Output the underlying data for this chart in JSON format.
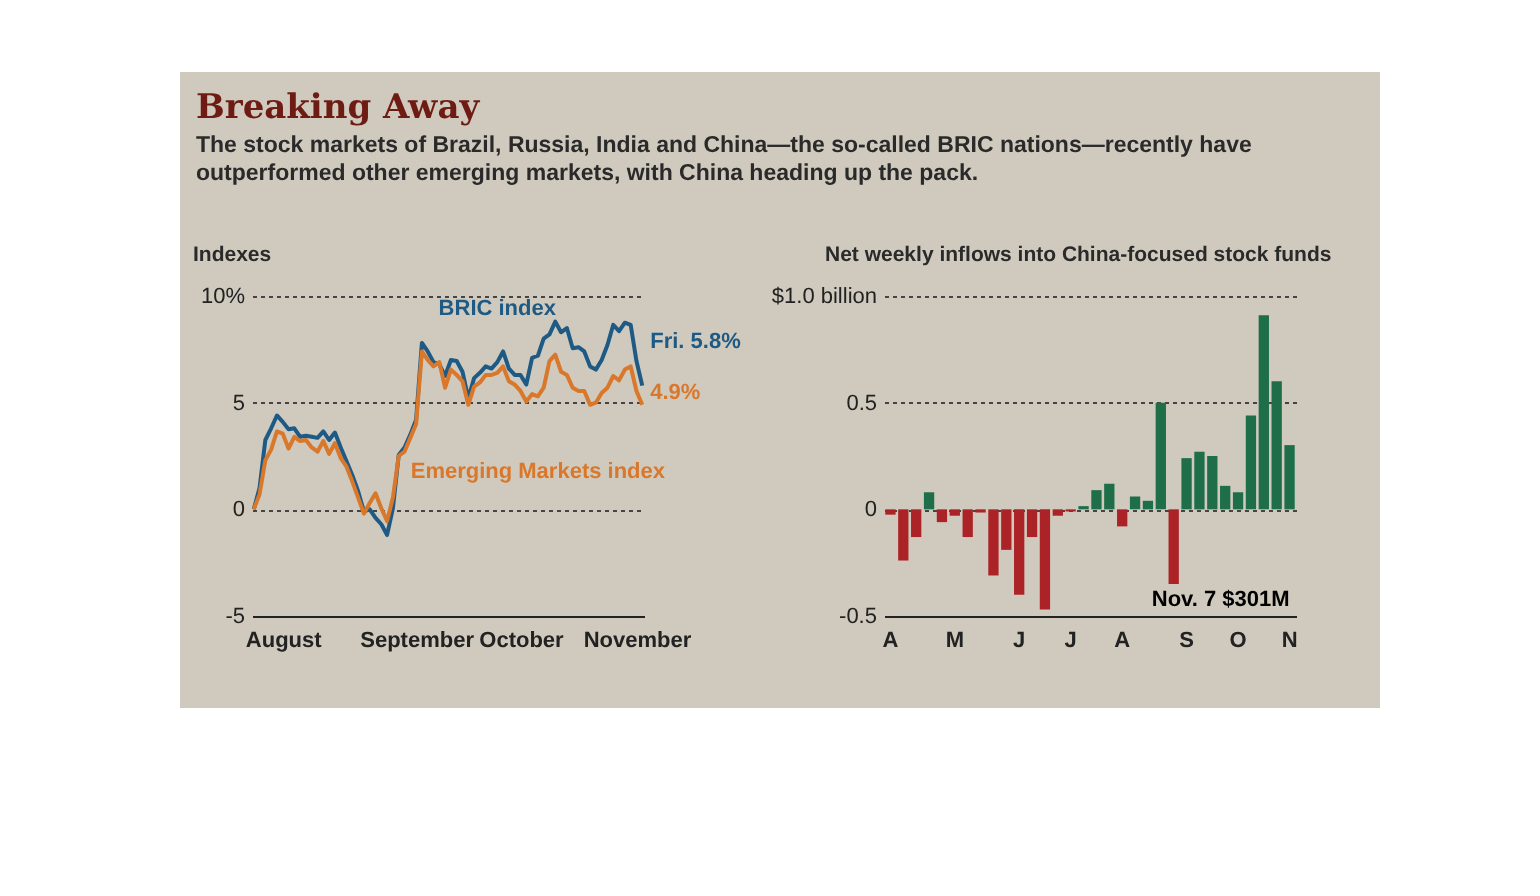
{
  "chart_data": [
    {
      "type": "line",
      "title": "Breaking Away",
      "subtitle": "The stock markets of Brazil, Russia, India and China—the so-called BRIC nations—recently have outperformed other emerging markets, with China heading up the pack.",
      "ylabel": "Indexes",
      "categories": [
        null,
        null,
        null,
        null,
        null,
        "August",
        null,
        null,
        null,
        null,
        null,
        null,
        null,
        null,
        null,
        null,
        null,
        null,
        null,
        null,
        null,
        null,
        null,
        null,
        null,
        null,
        null,
        null,
        "September",
        null,
        null,
        null,
        null,
        null,
        null,
        null,
        null,
        null,
        null,
        null,
        null,
        null,
        null,
        null,
        null,
        null,
        "October",
        null,
        null,
        null,
        null,
        null,
        null,
        null,
        null,
        null,
        null,
        null,
        null,
        null,
        null,
        null,
        null,
        null,
        null,
        null,
        "November",
        null
      ],
      "series": [
        {
          "name": "BRIC index",
          "color": "#1f5a85",
          "values": [
            0,
            1.0,
            3.25,
            3.8,
            4.4,
            4.1,
            3.75,
            3.8,
            3.4,
            3.45,
            3.4,
            3.35,
            3.65,
            3.25,
            3.6,
            2.9,
            2.25,
            1.6,
            0.85,
            -0.1,
            0,
            -0.4,
            -0.7,
            -1.2,
            0.05,
            2.55,
            2.9,
            3.5,
            4.2,
            7.8,
            7.4,
            6.9,
            6.8,
            6.25,
            7.0,
            6.95,
            6.45,
            5.2,
            6.15,
            6.4,
            6.7,
            6.6,
            6.9,
            7.4,
            6.6,
            6.3,
            6.3,
            5.85,
            7.1,
            7.2,
            8.0,
            8.2,
            8.8,
            8.3,
            8.5,
            7.55,
            7.6,
            7.4,
            6.7,
            6.55,
            7.0,
            7.7,
            8.65,
            8.35,
            8.75,
            8.65,
            6.95,
            5.8
          ]
        },
        {
          "name": "Emerging Markets index",
          "color": "#d9772b",
          "values": [
            0,
            0.7,
            2.3,
            2.8,
            3.65,
            3.55,
            2.85,
            3.4,
            3.2,
            3.25,
            2.9,
            2.7,
            3.2,
            2.6,
            3.1,
            2.4,
            2.0,
            1.3,
            0.55,
            -0.2,
            0.3,
            0.75,
            0.05,
            -0.55,
            0.55,
            2.5,
            2.7,
            3.35,
            4.0,
            7.4,
            7.0,
            6.7,
            6.9,
            5.7,
            6.55,
            6.3,
            6.0,
            4.9,
            5.75,
            5.95,
            6.3,
            6.3,
            6.4,
            6.7,
            6.0,
            5.85,
            5.55,
            5.05,
            5.4,
            5.3,
            5.7,
            6.95,
            7.25,
            6.45,
            6.3,
            5.7,
            5.55,
            5.55,
            4.9,
            5.0,
            5.45,
            5.7,
            6.25,
            6.05,
            6.55,
            6.7,
            5.55,
            4.9
          ]
        }
      ],
      "ylim": [
        -5,
        10
      ],
      "yticks": [
        -5,
        0,
        5,
        {
          "value": 10,
          "label": "10%"
        }
      ],
      "grid": "y",
      "annotations": [
        "Fri. 5.8%",
        "4.9%"
      ]
    },
    {
      "type": "bar",
      "ylabel": "Net weekly inflows into China-focused stock funds",
      "categories": [
        "A",
        null,
        null,
        null,
        null,
        "M",
        null,
        null,
        null,
        null,
        "J",
        null,
        null,
        null,
        "J",
        null,
        null,
        null,
        "A",
        null,
        null,
        null,
        null,
        "S",
        null,
        null,
        null,
        "O",
        null,
        null,
        null,
        "N"
      ],
      "values": [
        -0.025,
        -0.24,
        -0.13,
        0.08,
        -0.06,
        -0.03,
        -0.13,
        -0.015,
        -0.31,
        -0.19,
        -0.4,
        -0.13,
        -0.47,
        -0.03,
        -0.01,
        0.015,
        0.09,
        0.12,
        -0.08,
        0.06,
        0.04,
        0.5,
        -0.35,
        0.24,
        0.27,
        0.25,
        0.11,
        0.08,
        0.44,
        0.91,
        0.6,
        0.301
      ],
      "colors": [
        "#ab2326",
        "#ab2326",
        "#ab2326",
        "#1e6e4a",
        "#ab2326",
        "#ab2326",
        "#ab2326",
        "#ab2326",
        "#ab2326",
        "#ab2326",
        "#ab2326",
        "#ab2326",
        "#ab2326",
        "#ab2326",
        "#ab2326",
        "#1e6e4a",
        "#1e6e4a",
        "#1e6e4a",
        "#ab2326",
        "#1e6e4a",
        "#1e6e4a",
        "#1e6e4a",
        "#ab2326",
        "#1e6e4a",
        "#1e6e4a",
        "#1e6e4a",
        "#1e6e4a",
        "#1e6e4a",
        "#1e6e4a",
        "#1e6e4a",
        "#1e6e4a",
        "#1e6e4a"
      ],
      "ylim": [
        -0.5,
        1.0
      ],
      "yticks": [
        -0.5,
        0,
        0.5,
        {
          "value": 1.0,
          "label": "$1.0 billion"
        }
      ],
      "grid": "y",
      "annotations": [
        "Nov. 7 $301M"
      ]
    }
  ]
}
